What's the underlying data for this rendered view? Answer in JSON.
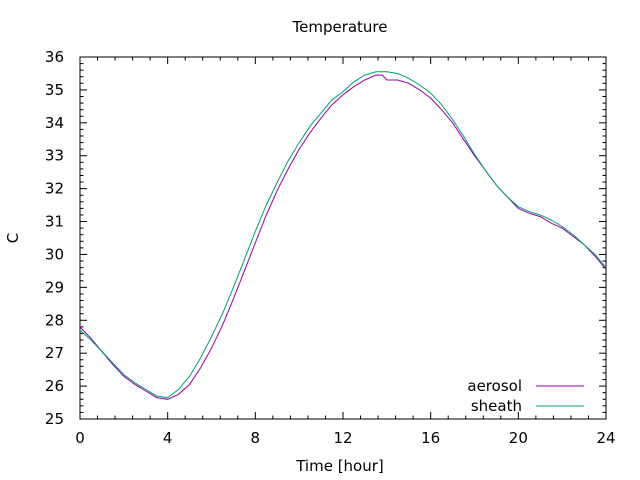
{
  "chart_data": {
    "type": "line",
    "title": "Temperature",
    "xlabel": "Time [hour]",
    "ylabel": "C",
    "xlim": [
      0,
      24
    ],
    "ylim": [
      25,
      36
    ],
    "x_ticks": [
      0,
      4,
      8,
      12,
      16,
      20,
      24
    ],
    "y_ticks": [
      25,
      26,
      27,
      28,
      29,
      30,
      31,
      32,
      33,
      34,
      35,
      36
    ],
    "grid": false,
    "legend_position": "bottom-right",
    "series": [
      {
        "name": "aerosol",
        "color": "#9400a0",
        "x": [
          0,
          0.5,
          1,
          1.5,
          2,
          2.5,
          3,
          3.5,
          4,
          4.5,
          5,
          5.5,
          6,
          6.5,
          7,
          7.5,
          8,
          8.5,
          9,
          9.5,
          10,
          10.5,
          11,
          11.5,
          12,
          12.5,
          13,
          13.5,
          13.8,
          14,
          14.5,
          15,
          15.5,
          16,
          16.5,
          17,
          17.5,
          18,
          18.5,
          19,
          19.5,
          20,
          20.5,
          21,
          21.5,
          22,
          22.5,
          23,
          23.5,
          24
        ],
        "y": [
          27.8,
          27.45,
          27.05,
          26.65,
          26.3,
          26.05,
          25.85,
          25.65,
          25.6,
          25.75,
          26.05,
          26.55,
          27.15,
          27.85,
          28.65,
          29.5,
          30.35,
          31.2,
          31.95,
          32.6,
          33.2,
          33.7,
          34.15,
          34.55,
          34.85,
          35.1,
          35.3,
          35.45,
          35.45,
          35.3,
          35.3,
          35.2,
          35.0,
          34.75,
          34.4,
          34.0,
          33.5,
          33.0,
          32.55,
          32.1,
          31.75,
          31.4,
          31.25,
          31.15,
          30.95,
          30.8,
          30.55,
          30.3,
          29.95,
          29.55
        ]
      },
      {
        "name": "sheath",
        "color": "#009e73",
        "x": [
          0,
          0.5,
          1,
          1.5,
          2,
          2.5,
          3,
          3.5,
          4,
          4.5,
          5,
          5.5,
          6,
          6.5,
          7,
          7.5,
          8,
          8.5,
          9,
          9.5,
          10,
          10.5,
          11,
          11.5,
          12,
          12.5,
          13,
          13.5,
          14,
          14.5,
          15,
          15.5,
          16,
          16.5,
          17,
          17.5,
          18,
          18.5,
          19,
          19.5,
          20,
          20.5,
          21,
          21.5,
          22,
          22.5,
          23,
          23.5,
          24
        ],
        "y": [
          27.7,
          27.4,
          27.05,
          26.7,
          26.35,
          26.1,
          25.9,
          25.7,
          25.65,
          25.9,
          26.3,
          26.85,
          27.5,
          28.2,
          29.0,
          29.85,
          30.7,
          31.5,
          32.2,
          32.85,
          33.4,
          33.9,
          34.3,
          34.7,
          34.95,
          35.25,
          35.45,
          35.55,
          35.55,
          35.5,
          35.35,
          35.15,
          34.9,
          34.55,
          34.1,
          33.6,
          33.05,
          32.55,
          32.1,
          31.75,
          31.45,
          31.3,
          31.2,
          31.05,
          30.85,
          30.6,
          30.3,
          30.0,
          29.6
        ]
      }
    ]
  }
}
